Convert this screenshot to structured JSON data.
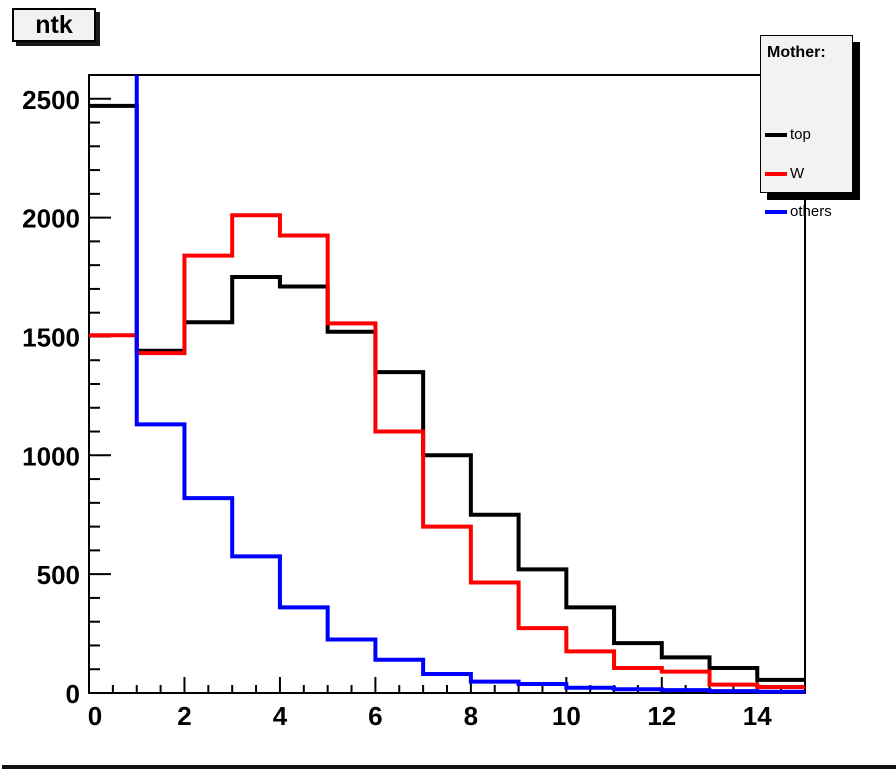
{
  "title": "ntk",
  "legend": {
    "header": "Mother:",
    "entries": [
      {
        "label": "top",
        "color": "#000000"
      },
      {
        "label": "W",
        "color": "#ff0000"
      },
      {
        "label": "others",
        "color": "#0000ff"
      }
    ]
  },
  "chart_data": {
    "type": "step-histogram",
    "title": "ntk",
    "bin_width": 1,
    "xlim": [
      0,
      15
    ],
    "ylim": [
      0,
      2600
    ],
    "xticks": [
      0,
      2,
      4,
      6,
      8,
      10,
      12,
      14
    ],
    "yticks": [
      0,
      500,
      1000,
      1500,
      2000,
      2500
    ],
    "x_minor_step": 0.5,
    "x_major_step": 2,
    "y_minor_step": 100,
    "y_major_step": 500,
    "grid": false,
    "legend_position": "top-right",
    "series": [
      {
        "name": "top",
        "color": "#000000",
        "values": [
          2470,
          1440,
          1560,
          1750,
          1710,
          1520,
          1350,
          1000,
          750,
          520,
          360,
          210,
          150,
          105,
          55
        ]
      },
      {
        "name": "W",
        "color": "#ff0000",
        "values": [
          1505,
          1430,
          1840,
          2010,
          1925,
          1555,
          1100,
          700,
          465,
          273,
          175,
          105,
          90,
          35,
          25
        ]
      },
      {
        "name": "others",
        "color": "#0000ff",
        "values": [
          2600,
          1130,
          820,
          575,
          360,
          225,
          140,
          80,
          48,
          38,
          22,
          16,
          12,
          8,
          5
        ],
        "note": "first bin exceeds y-axis range; drawn clipped at top of frame"
      }
    ]
  }
}
